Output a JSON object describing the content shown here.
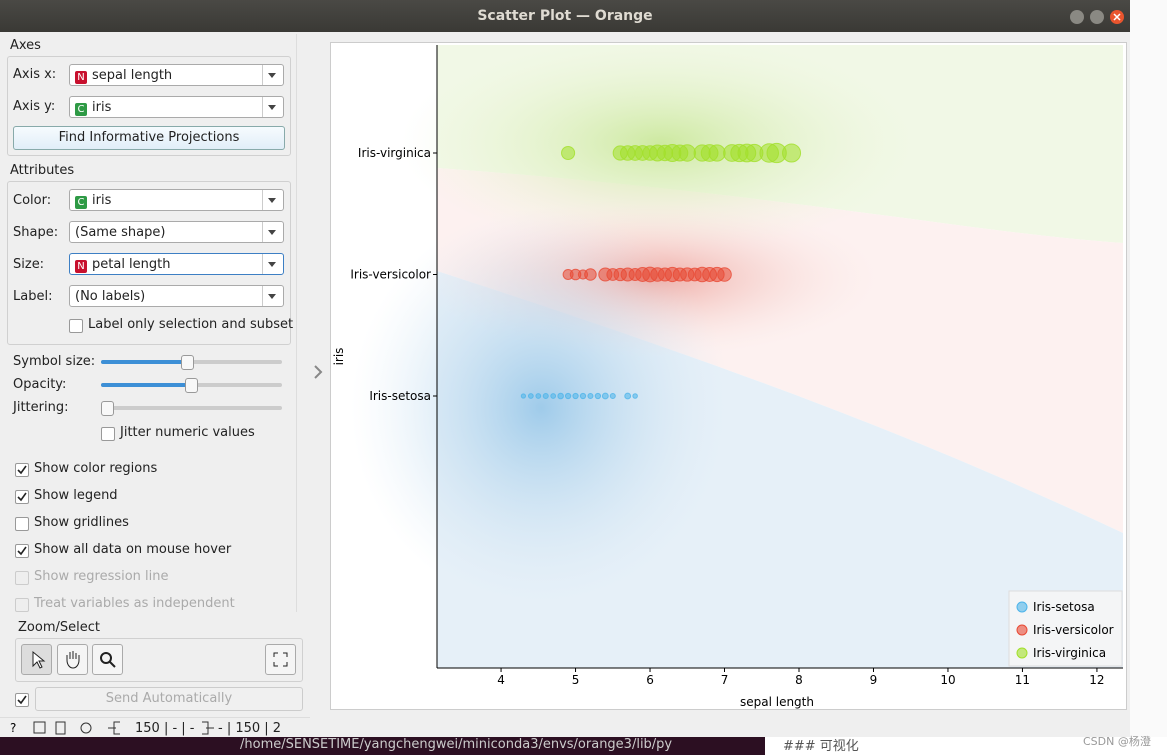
{
  "window_title": "Scatter Plot — Orange",
  "axes": {
    "heading": "Axes",
    "rows": [
      {
        "label": "Axis x:",
        "badge": "N",
        "value": "sepal length"
      },
      {
        "label": "Axis y:",
        "badge": "C",
        "value": "iris"
      }
    ],
    "button": "Find Informative Projections"
  },
  "attributes": {
    "heading": "Attributes",
    "rows": [
      {
        "label": "Color:",
        "badge": "C",
        "value": "iris"
      },
      {
        "label": "Shape:",
        "value": "(Same shape)"
      },
      {
        "label": "Size:",
        "badge": "N",
        "value": "petal length"
      },
      {
        "label": "Label:",
        "value": "(No labels)"
      }
    ],
    "label_only": "Label only selection and subset"
  },
  "sliders": [
    {
      "label": "Symbol size:"
    },
    {
      "label": "Opacity:"
    },
    {
      "label": "Jittering:"
    }
  ],
  "jitter_numeric": "Jitter numeric values",
  "checkboxes": [
    {
      "label": "Show color regions",
      "checked": true,
      "enabled": true
    },
    {
      "label": "Show legend",
      "checked": true,
      "enabled": true
    },
    {
      "label": "Show gridlines",
      "checked": false,
      "enabled": true
    },
    {
      "label": "Show all data on mouse hover",
      "checked": true,
      "enabled": true
    },
    {
      "label": "Show regression line",
      "checked": false,
      "enabled": false
    },
    {
      "label": "Treat variables as independent",
      "checked": false,
      "enabled": false
    }
  ],
  "zoom_heading": "Zoom/Select",
  "send_button": "Send Automatically",
  "status": {
    "input": "150 | - | -",
    "output": "- | 150 | 2"
  },
  "background": {
    "terminal": "/home/SENSETIME/yangchengwei/miniconda3/envs/orange3/lib/py",
    "note": "### 可视化",
    "watermark": "CSDN @杨澄"
  },
  "chart_data": {
    "type": "scatter",
    "x_label": "sepal length",
    "y_label": "iris",
    "categories": [
      "Iris-setosa",
      "Iris-versicolor",
      "Iris-virginica"
    ],
    "xlim": [
      3.14,
      12.35
    ],
    "xticks": [
      4,
      5,
      6,
      7,
      8,
      9,
      10,
      11,
      12
    ],
    "legend": "lower right",
    "color_regions": true,
    "series": [
      {
        "name": "Iris-setosa",
        "color": "#4db4ea",
        "x": [
          4.3,
          4.4,
          4.5,
          4.6,
          4.7,
          4.8,
          4.9,
          5.0,
          5.1,
          5.2,
          5.3,
          5.4,
          5.5,
          5.7,
          5.8
        ],
        "sizes": [
          1.1,
          1.3,
          1.3,
          1.4,
          1.3,
          1.6,
          1.5,
          1.5,
          1.5,
          1.4,
          1.5,
          1.7,
          1.4,
          1.7,
          1.2
        ]
      },
      {
        "name": "Iris-versicolor",
        "color": "#e84a35",
        "x": [
          4.9,
          5.0,
          5.1,
          5.2,
          5.4,
          5.5,
          5.6,
          5.7,
          5.8,
          5.9,
          6.0,
          6.1,
          6.2,
          6.3,
          6.4,
          6.5,
          6.6,
          6.7,
          6.8,
          6.9,
          7.0
        ],
        "sizes": [
          3.3,
          3.5,
          3.0,
          3.9,
          4.5,
          4.0,
          4.2,
          4.5,
          4.1,
          4.8,
          5.1,
          4.7,
          4.5,
          4.9,
          4.5,
          4.6,
          4.4,
          5.0,
          4.8,
          4.9,
          4.7
        ]
      },
      {
        "name": "Iris-virginica",
        "color": "#a2e02a",
        "x": [
          4.9,
          5.6,
          5.7,
          5.8,
          5.9,
          6.0,
          6.1,
          6.2,
          6.3,
          6.4,
          6.5,
          6.7,
          6.8,
          6.9,
          7.1,
          7.2,
          7.3,
          7.4,
          7.6,
          7.7,
          7.9
        ],
        "sizes": [
          4.5,
          4.9,
          5.0,
          5.1,
          5.1,
          5.0,
          5.6,
          5.4,
          6.0,
          5.6,
          5.8,
          5.7,
          5.9,
          5.7,
          5.9,
          6.1,
          6.3,
          6.1,
          6.6,
          6.9,
          6.4
        ]
      }
    ]
  }
}
